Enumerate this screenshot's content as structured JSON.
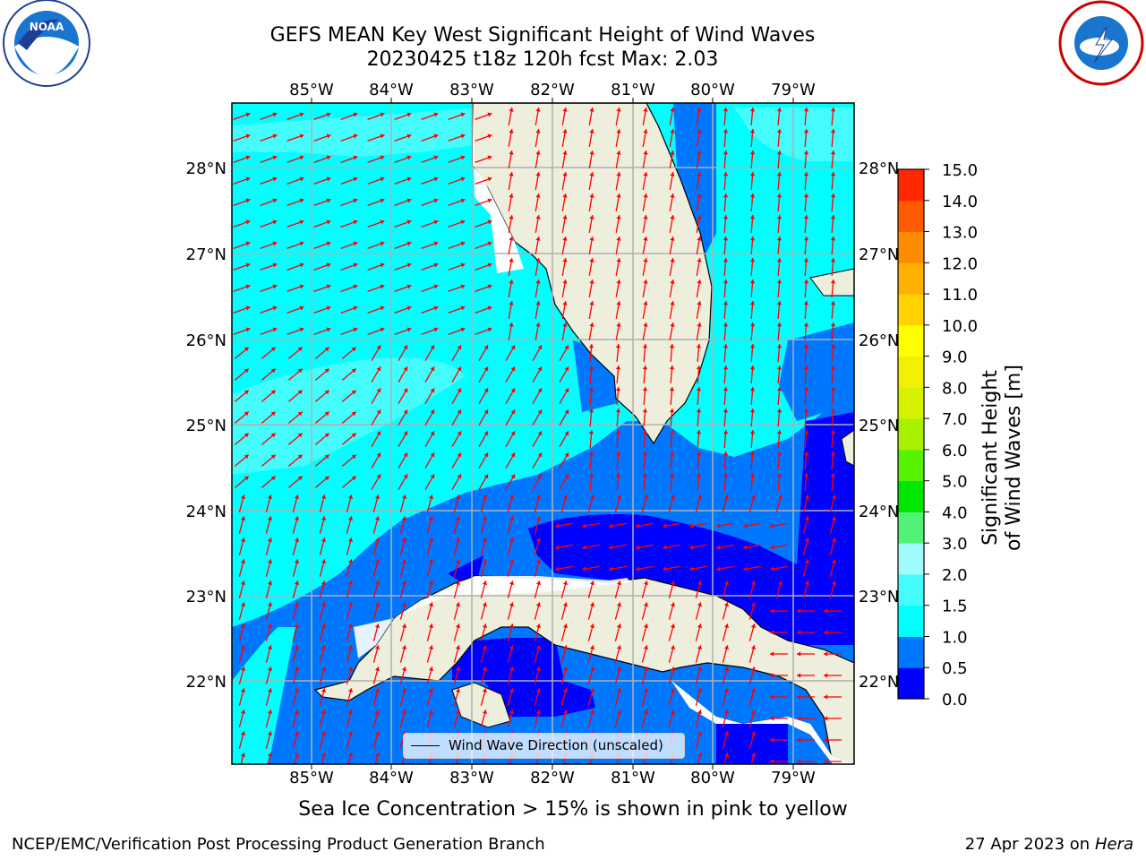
{
  "title_line1": "GEFS MEAN Key West Significant Height of Wind Waves",
  "title_line2": "20230425 t18z 120h fcst   Max: 2.03",
  "lon_labels": [
    "85°W",
    "84°W",
    "83°W",
    "82°W",
    "81°W",
    "80°W",
    "79°W"
  ],
  "lat_labels": [
    "28°N",
    "27°N",
    "26°N",
    "25°N",
    "24°N",
    "23°N",
    "22°N"
  ],
  "legend_label": "Wind Wave Direction (unscaled)",
  "colorbar": {
    "title": "Significant Height of Wind Waves [m]",
    "ticks": [
      "0.0",
      "0.5",
      "1.0",
      "1.5",
      "2.0",
      "3.0",
      "4.0",
      "5.0",
      "6.0",
      "7.0",
      "8.0",
      "9.0",
      "10.0",
      "11.0",
      "12.0",
      "13.0",
      "14.0",
      "15.0"
    ],
    "colors": [
      "#0000ff",
      "#0077ff",
      "#00ffff",
      "#44fcfc",
      "#a0fcfc",
      "#52f279",
      "#00e600",
      "#56f200",
      "#a6f000",
      "#d7f200",
      "#f0f000",
      "#ffff00",
      "#ffd200",
      "#ffb000",
      "#ff8c00",
      "#ff5a00",
      "#ff2800"
    ]
  },
  "sea_ice_note": "Sea Ice Concentration > 15% is shown in pink to yellow",
  "footer_left": "NCEP/EMC/Verification Post Processing Product Generation Branch",
  "footer_date": "27 Apr 2023 on",
  "footer_host": "Hera",
  "colors": {
    "land": "#eeeedd",
    "arrow": "#ff0000",
    "grid": "#b0b0b0"
  }
}
